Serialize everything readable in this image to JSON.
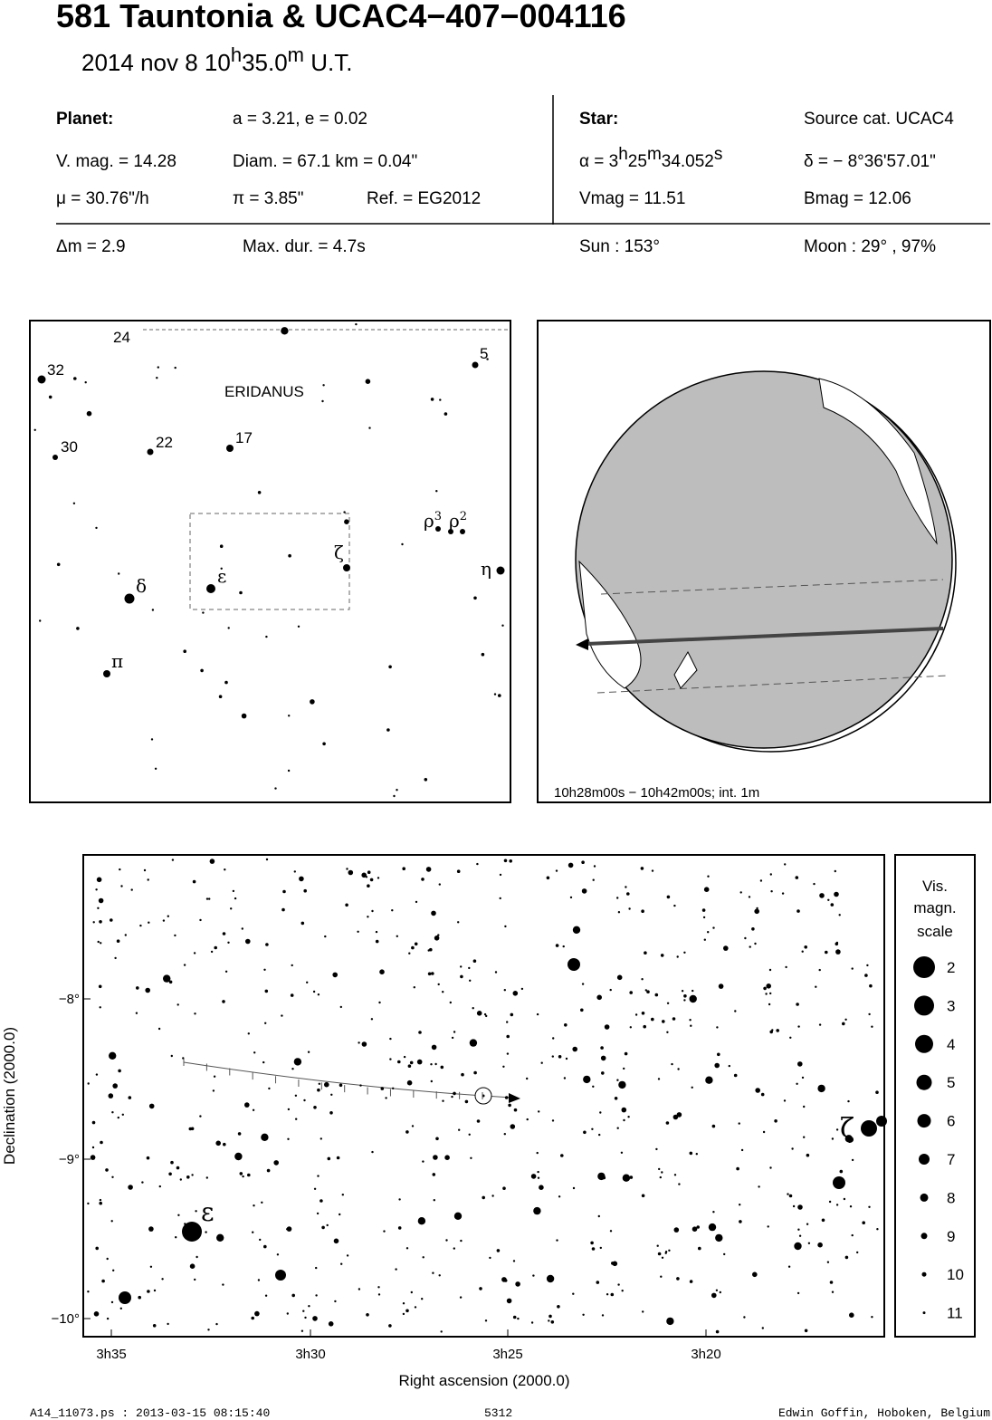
{
  "header": {
    "title": "581 Tauntonia  &  UCAC4−407−004116",
    "date": [
      "2014 nov  8  10",
      "h",
      "35.0",
      "m",
      " U.T."
    ]
  },
  "info": {
    "planet_label": "Planet:",
    "orbit": "a = 3.21, e = 0.02",
    "vmag": "V. mag. = 14.28",
    "diam": "Diam. = 67.1 km = 0.04\"",
    "mu": "μ =  30.76\"/h",
    "parallax": "π =  3.85\"",
    "ref": "Ref. = EG2012",
    "star_label": "Star:",
    "source": "Source cat.  UCAC4",
    "ra": [
      "α =  3",
      "h",
      "25",
      "m",
      "34.052",
      "s"
    ],
    "dec": "δ = − 8°36'57.01\"",
    "vmag_star": "Vmag = 11.51",
    "bmag": "Bmag = 12.06",
    "dm": "Δm = 2.9",
    "maxdur": "Max. dur. = 4.7s",
    "sun": "Sun : 153°",
    "moon": "Moon :  29° , 97%"
  },
  "finder": {
    "constellation": "ERIDANUS",
    "labels": [
      "24",
      "5",
      "32",
      "30",
      "22",
      "17",
      "ρ",
      "3",
      "ρ",
      "2",
      "ζ",
      "η",
      "δ",
      "ε",
      "π"
    ]
  },
  "globe": {
    "caption": "10h28m00s − 10h42m00s; int.  1m"
  },
  "main": {
    "yticks": [
      "−8°",
      "−9°",
      "−10°"
    ],
    "xticks": [
      "3h35",
      "3h30",
      "3h25",
      "3h20"
    ],
    "xlabel": "Right ascension (2000.0)",
    "ylabel": "Declination (2000.0)",
    "star_labels": [
      "ε",
      "ζ"
    ]
  },
  "legend": {
    "title": [
      "Vis.",
      "magn.",
      "scale"
    ],
    "magnitudes": [
      "2",
      "3",
      "4",
      "5",
      "6",
      "7",
      "8",
      "9",
      "10",
      "11"
    ]
  },
  "footer": {
    "file": "A14_11073.ps : 2013-03-15 08:15:40",
    "number": "5312",
    "author": "Edwin Goffin, Hoboken, Belgium"
  }
}
